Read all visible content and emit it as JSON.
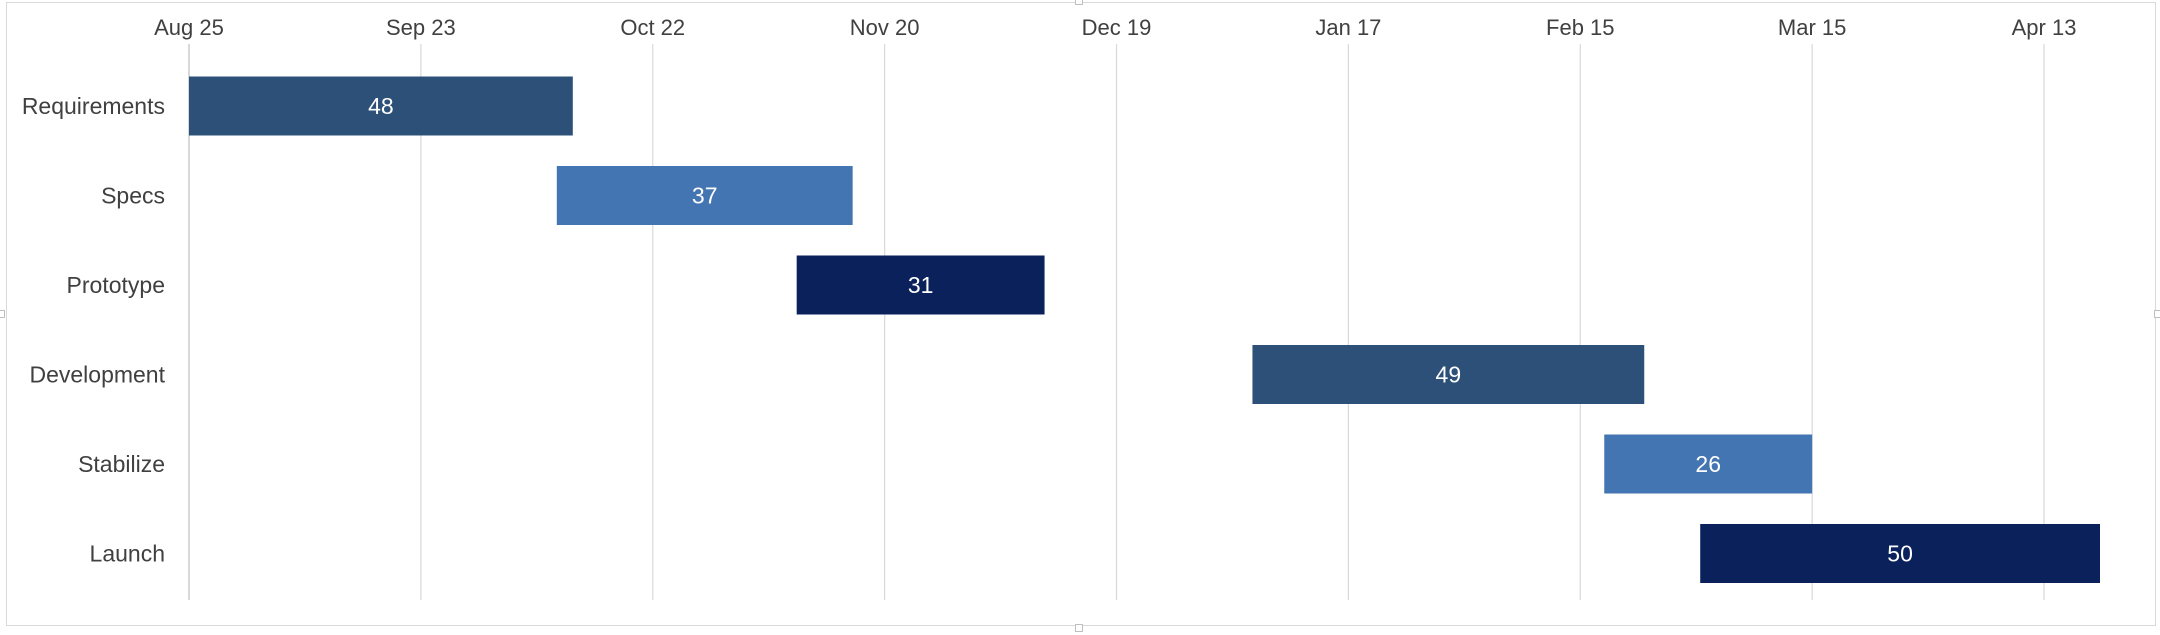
{
  "chart_data": {
    "type": "bar",
    "orientation": "horizontal",
    "subtype": "gantt",
    "title": "",
    "xlabel": "",
    "ylabel": "",
    "x_axis_position": "top",
    "x_tick_labels": [
      "Aug 25",
      "Sep 23",
      "Oct 22",
      "Nov 20",
      "Dec 19",
      "Jan 17",
      "Feb 15",
      "Mar 15",
      "Apr 13"
    ],
    "x_ticks": [
      "2023-08-25",
      "2023-09-23",
      "2023-10-22",
      "2023-11-20",
      "2023-12-19",
      "2024-01-17",
      "2024-02-15",
      "2024-03-15",
      "2024-04-13"
    ],
    "xlim": [
      "2023-08-25",
      "2024-04-20"
    ],
    "grid": "vertical",
    "legend": "none",
    "categories": [
      "Requirements",
      "Specs",
      "Prototype",
      "Development",
      "Stabilize",
      "Launch"
    ],
    "tasks": [
      {
        "name": "Requirements",
        "start": "2023-08-25",
        "duration": 48,
        "color": "#2c5078"
      },
      {
        "name": "Specs",
        "start": "2023-10-10",
        "duration": 37,
        "color": "#4375b2"
      },
      {
        "name": "Prototype",
        "start": "2023-11-09",
        "duration": 31,
        "color": "#0a215b"
      },
      {
        "name": "Development",
        "start": "2024-01-05",
        "duration": 49,
        "color": "#2c5078"
      },
      {
        "name": "Stabilize",
        "start": "2024-02-18",
        "duration": 26,
        "color": "#4375b2"
      },
      {
        "name": "Launch",
        "start": "2024-03-01",
        "duration": 50,
        "color": "#0a215b"
      }
    ]
  }
}
